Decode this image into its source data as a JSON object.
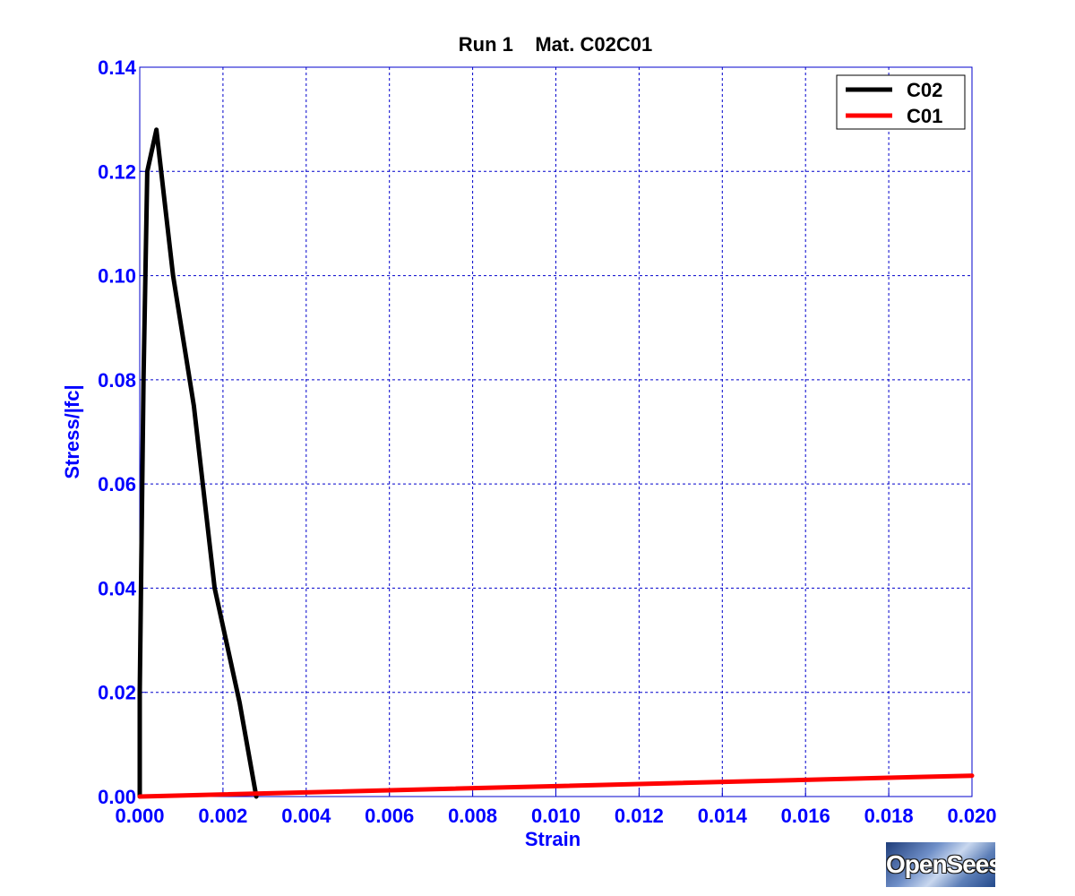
{
  "chart_data": {
    "type": "line",
    "title": "Run 1    Mat. C02C01",
    "xlabel": "Strain",
    "ylabel": "Stress/|fc|",
    "xlim": [
      0.0,
      0.02
    ],
    "ylim": [
      0.0,
      0.14
    ],
    "xticks": [
      "0.000",
      "0.002",
      "0.004",
      "0.006",
      "0.008",
      "0.010",
      "0.012",
      "0.014",
      "0.016",
      "0.018",
      "0.020"
    ],
    "yticks": [
      "0.00",
      "0.02",
      "0.04",
      "0.06",
      "0.08",
      "0.10",
      "0.12",
      "0.14"
    ],
    "grid": true,
    "legend_position": "top-right",
    "series": [
      {
        "name": "C02",
        "color": "#000000",
        "x": [
          0.0,
          0.0,
          9e-05,
          0.00018,
          0.0004,
          0.0008,
          0.0013,
          0.0018,
          0.0024,
          0.0028
        ],
        "y": [
          0.0,
          0.02,
          0.08,
          0.12,
          0.128,
          0.1,
          0.075,
          0.04,
          0.018,
          0.0
        ]
      },
      {
        "name": "C01",
        "color": "#ff0000",
        "x": [
          0.0,
          0.02
        ],
        "y": [
          0.0,
          0.004
        ]
      }
    ]
  },
  "logo": {
    "text": "OpenSees"
  },
  "colors": {
    "axis_text": "#0000ff",
    "grid": "#0000cc",
    "frame": "#0000cc"
  }
}
